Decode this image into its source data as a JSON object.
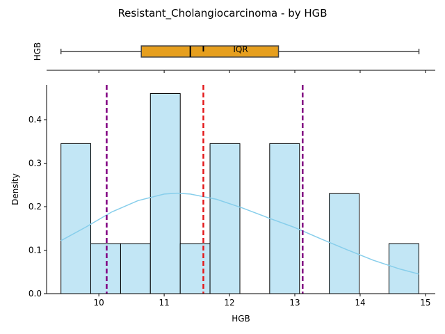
{
  "chart_data": {
    "title": "Resistant_Cholangiocarcinoma - by HGB",
    "type": "histogram",
    "boxplot": {
      "ylabel": "HGB",
      "iqr_label": "IQR",
      "whisker_low": 9.42,
      "q1": 10.65,
      "median": 11.4,
      "mean": 11.6,
      "q3": 12.75,
      "whisker_high": 14.9,
      "box_color": "#E69F1E"
    },
    "histogram": {
      "xlabel": "HGB",
      "ylabel": "Density",
      "xlim": [
        9.2,
        15.15
      ],
      "ylim": [
        0,
        0.48
      ],
      "xticks": [
        10,
        11,
        12,
        13,
        14,
        15
      ],
      "yticks": [
        0.0,
        0.1,
        0.2,
        0.3,
        0.4
      ],
      "bin_edges": [
        9.42,
        9.876,
        10.333,
        10.789,
        11.246,
        11.702,
        12.159,
        12.615,
        13.072,
        13.528,
        13.985,
        14.441,
        14.898
      ],
      "densities": [
        0.345,
        0.115,
        0.115,
        0.46,
        0.115,
        0.345,
        0.0,
        0.345,
        0.0,
        0.23,
        0.0,
        0.115
      ],
      "bar_color": "#C2E6F5",
      "kde": {
        "color": "#87CEEB",
        "x": [
          9.42,
          9.8,
          10.2,
          10.6,
          11.0,
          11.2,
          11.4,
          11.8,
          12.2,
          12.6,
          13.0,
          13.4,
          13.8,
          14.2,
          14.6,
          14.9
        ],
        "y": [
          0.122,
          0.153,
          0.188,
          0.214,
          0.229,
          0.231,
          0.229,
          0.217,
          0.197,
          0.174,
          0.152,
          0.126,
          0.101,
          0.077,
          0.057,
          0.045
        ]
      },
      "vlines": [
        {
          "x": 11.6,
          "color": "#E31A1C"
        },
        {
          "x": 10.12,
          "color": "#800080"
        },
        {
          "x": 13.12,
          "color": "#800080"
        }
      ]
    }
  }
}
